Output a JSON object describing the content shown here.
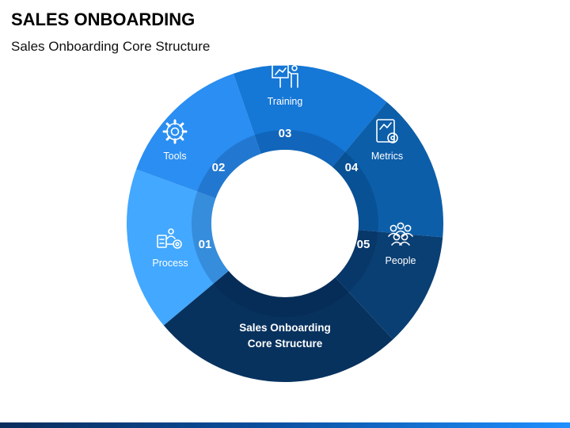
{
  "header": {
    "title": "SALES ONBOARDING",
    "subtitle": "Sales Onboarding Core Structure"
  },
  "diagram": {
    "center_label_line1": "Sales Onboarding",
    "center_label_line2": "Core Structure",
    "center_color": "#08325e",
    "segments": [
      {
        "number": "01",
        "label": "Process",
        "icon": "process-icon",
        "color": "#43a8ff"
      },
      {
        "number": "02",
        "label": "Tools",
        "icon": "gear-icon",
        "color": "#2a8ef2"
      },
      {
        "number": "03",
        "label": "Training",
        "icon": "training-icon",
        "color": "#1577d6"
      },
      {
        "number": "04",
        "label": "Metrics",
        "icon": "metrics-icon",
        "color": "#0c5ea9"
      },
      {
        "number": "05",
        "label": "People",
        "icon": "people-icon",
        "color": "#0a3f73"
      }
    ]
  }
}
